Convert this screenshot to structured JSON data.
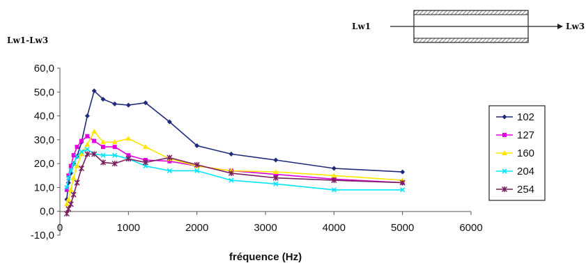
{
  "chart_data": {
    "type": "line",
    "ylabel": "Lw1-Lw3",
    "xlabel": "fréquence (Hz)",
    "xlim": [
      0,
      6000
    ],
    "ylim": [
      -10,
      60
    ],
    "x_ticks": [
      "0",
      "1000",
      "2000",
      "3000",
      "4000",
      "5000",
      "6000"
    ],
    "y_ticks": [
      "-10,0",
      "0,0",
      "10,0",
      "20,0",
      "30,0",
      "40,0",
      "50,0",
      "60,0"
    ],
    "grid": false,
    "legend_position": "right",
    "series": [
      {
        "name": "102",
        "color": "#1f2a7a",
        "marker": "diamond",
        "x": [
          100,
          125,
          160,
          200,
          250,
          315,
          400,
          500,
          630,
          800,
          1000,
          1250,
          1600,
          2000,
          2500,
          3150,
          4000,
          5000
        ],
        "y": [
          5,
          12,
          16,
          20,
          23,
          29,
          40,
          50.5,
          47,
          45,
          44.5,
          45.5,
          37.5,
          27.5,
          24,
          21.5,
          18,
          16.5
        ]
      },
      {
        "name": "127",
        "color": "#e000e0",
        "marker": "square",
        "x": [
          100,
          125,
          160,
          200,
          250,
          315,
          400,
          500,
          630,
          800,
          1000,
          1250,
          1600,
          2000,
          2500,
          3150,
          4000,
          5000
        ],
        "y": [
          9,
          15,
          19,
          23.5,
          27,
          29.5,
          31.5,
          29.5,
          27,
          27,
          23.5,
          21.5,
          21,
          19,
          17,
          15.5,
          13.5,
          12
        ]
      },
      {
        "name": "160",
        "color": "#ffe600",
        "marker": "triangle",
        "x": [
          100,
          125,
          160,
          200,
          250,
          315,
          400,
          500,
          630,
          800,
          1000,
          1250,
          1600,
          2000,
          2500,
          3150,
          4000,
          5000
        ],
        "y": [
          3,
          5,
          9,
          14,
          19,
          24,
          28,
          33.5,
          29,
          29,
          30.5,
          27,
          22,
          19,
          17,
          16.5,
          15,
          13
        ]
      },
      {
        "name": "204",
        "color": "#00e5ff",
        "marker": "cross",
        "x": [
          100,
          125,
          160,
          200,
          250,
          315,
          400,
          500,
          630,
          800,
          1000,
          1250,
          1600,
          2000,
          2500,
          3150,
          4000,
          5000
        ],
        "y": [
          10,
          14,
          17,
          20,
          23,
          25,
          26,
          24,
          23.5,
          23.5,
          22,
          19,
          17,
          17,
          13,
          11.5,
          9,
          9
        ]
      },
      {
        "name": "254",
        "color": "#7a1f5e",
        "marker": "star",
        "x": [
          100,
          125,
          160,
          200,
          250,
          315,
          400,
          500,
          630,
          800,
          1000,
          1250,
          1600,
          2000,
          2500,
          3150,
          4000,
          5000
        ],
        "y": [
          -1,
          1,
          3,
          7,
          12,
          18,
          24,
          24,
          20.5,
          20,
          22,
          20.5,
          22.5,
          19.5,
          16,
          14,
          13,
          12
        ]
      }
    ]
  },
  "diagram": {
    "inlet_label": "Lw1",
    "outlet_label": "Lw3"
  }
}
